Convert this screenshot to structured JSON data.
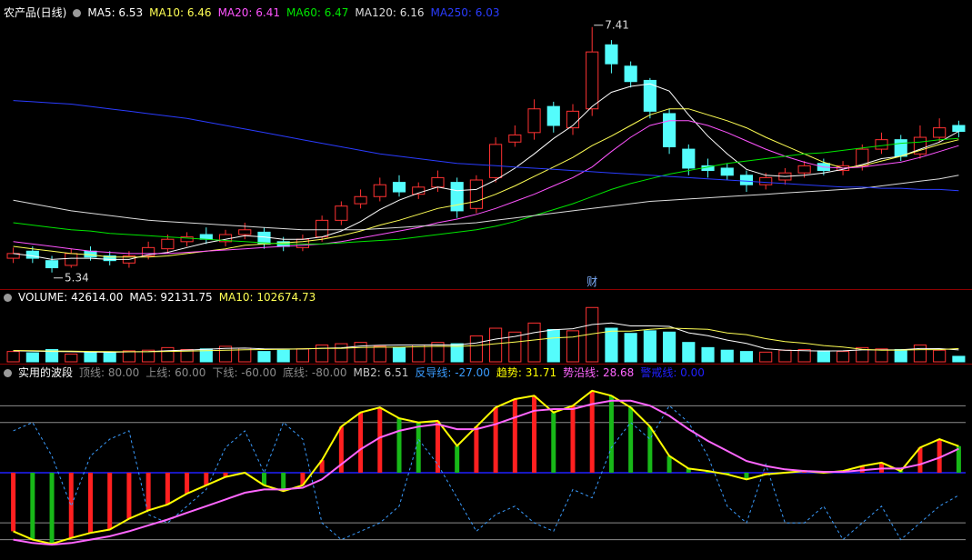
{
  "chart_data": [
    {
      "type": "candlestick",
      "title": "农产品(日线)",
      "ylim": [
        5.2,
        7.5
      ],
      "up_color": "#ff3232",
      "down_color": "#54fcfc",
      "open": [
        5.46,
        5.52,
        5.44,
        5.4,
        5.52,
        5.48,
        5.42,
        5.48,
        5.54,
        5.6,
        5.66,
        5.6,
        5.66,
        5.68,
        5.6,
        5.55,
        5.64,
        5.78,
        5.92,
        5.98,
        6.1,
        6.0,
        6.06,
        6.1,
        5.88,
        6.14,
        6.44,
        6.52,
        6.74,
        6.56,
        6.72,
        7.26,
        7.08,
        6.96,
        6.68,
        6.38,
        6.24,
        6.22,
        6.16,
        6.08,
        6.12,
        6.18,
        6.26,
        6.2,
        6.24,
        6.38,
        6.46,
        6.34,
        6.48,
        6.58
      ],
      "high": [
        5.55,
        5.56,
        5.48,
        5.54,
        5.56,
        5.52,
        5.52,
        5.6,
        5.66,
        5.68,
        5.72,
        5.7,
        5.76,
        5.72,
        5.64,
        5.66,
        5.82,
        5.94,
        6.04,
        6.14,
        6.16,
        6.1,
        6.2,
        6.14,
        6.16,
        6.48,
        6.58,
        6.8,
        6.78,
        6.76,
        7.41,
        7.3,
        7.12,
        6.98,
        6.72,
        6.42,
        6.3,
        6.26,
        6.2,
        6.18,
        6.22,
        6.28,
        6.3,
        6.28,
        6.42,
        6.52,
        6.5,
        6.58,
        6.64,
        6.62
      ],
      "low": [
        5.42,
        5.42,
        5.34,
        5.38,
        5.44,
        5.4,
        5.38,
        5.45,
        5.5,
        5.56,
        5.58,
        5.56,
        5.62,
        5.54,
        5.52,
        5.52,
        5.6,
        5.74,
        5.88,
        5.94,
        5.98,
        5.96,
        6.02,
        5.8,
        5.84,
        6.1,
        6.4,
        6.46,
        6.52,
        6.5,
        6.66,
        7.02,
        6.9,
        6.64,
        6.34,
        6.16,
        6.14,
        6.12,
        6.02,
        6.04,
        6.08,
        6.14,
        6.16,
        6.16,
        6.2,
        6.34,
        6.28,
        6.3,
        6.44,
        6.48
      ],
      "close": [
        5.5,
        5.46,
        5.38,
        5.5,
        5.47,
        5.44,
        5.48,
        5.55,
        5.62,
        5.64,
        5.62,
        5.66,
        5.7,
        5.58,
        5.56,
        5.62,
        5.78,
        5.9,
        5.98,
        6.08,
        6.02,
        6.06,
        6.14,
        5.86,
        6.12,
        6.42,
        6.5,
        6.72,
        6.58,
        6.7,
        7.2,
        7.1,
        6.95,
        6.7,
        6.4,
        6.22,
        6.2,
        6.16,
        6.08,
        6.14,
        6.18,
        6.24,
        6.2,
        6.24,
        6.38,
        6.46,
        6.32,
        6.48,
        6.56,
        6.53
      ],
      "series": [
        {
          "name": "MA5: 6.53",
          "color": "#ffffff",
          "values": [
            5.5,
            5.48,
            5.45,
            5.46,
            5.46,
            5.45,
            5.45,
            5.49,
            5.51,
            5.55,
            5.59,
            5.62,
            5.65,
            5.64,
            5.62,
            5.62,
            5.64,
            5.69,
            5.77,
            5.87,
            5.95,
            6.01,
            6.06,
            6.03,
            6.04,
            6.12,
            6.22,
            6.34,
            6.47,
            6.58,
            6.74,
            6.86,
            6.91,
            6.93,
            6.87,
            6.67,
            6.49,
            6.34,
            6.21,
            6.16,
            6.15,
            6.16,
            6.18,
            6.21,
            6.25,
            6.3,
            6.32,
            6.38,
            6.44,
            6.53
          ]
        },
        {
          "name": "MA10: 6.46",
          "color": "#ffff54",
          "values": [
            5.56,
            5.54,
            5.52,
            5.5,
            5.49,
            5.47,
            5.47,
            5.47,
            5.48,
            5.5,
            5.52,
            5.54,
            5.57,
            5.58,
            5.59,
            5.6,
            5.62,
            5.65,
            5.69,
            5.74,
            5.78,
            5.83,
            5.88,
            5.91,
            5.94,
            6.0,
            6.07,
            6.15,
            6.23,
            6.31,
            6.41,
            6.49,
            6.58,
            6.67,
            6.72,
            6.72,
            6.67,
            6.62,
            6.56,
            6.48,
            6.41,
            6.34,
            6.27,
            6.22,
            6.24,
            6.28,
            6.32,
            6.37,
            6.42,
            6.46
          ]
        },
        {
          "name": "MA20: 6.41",
          "color": "#ff54ff",
          "values": [
            5.6,
            5.58,
            5.56,
            5.54,
            5.52,
            5.51,
            5.5,
            5.5,
            5.5,
            5.51,
            5.52,
            5.53,
            5.54,
            5.55,
            5.56,
            5.57,
            5.58,
            5.6,
            5.63,
            5.66,
            5.69,
            5.72,
            5.76,
            5.79,
            5.83,
            5.88,
            5.94,
            6.0,
            6.07,
            6.14,
            6.23,
            6.36,
            6.48,
            6.58,
            6.62,
            6.62,
            6.58,
            6.52,
            6.45,
            6.38,
            6.32,
            6.27,
            6.23,
            6.22,
            6.23,
            6.25,
            6.27,
            6.31,
            6.36,
            6.41
          ]
        },
        {
          "name": "MA60: 6.47",
          "color": "#00e600",
          "values": [
            5.76,
            5.74,
            5.72,
            5.7,
            5.69,
            5.67,
            5.66,
            5.65,
            5.64,
            5.63,
            5.62,
            5.61,
            5.6,
            5.59,
            5.58,
            5.58,
            5.58,
            5.59,
            5.6,
            5.61,
            5.62,
            5.64,
            5.66,
            5.68,
            5.7,
            5.73,
            5.77,
            5.82,
            5.87,
            5.92,
            5.98,
            6.04,
            6.09,
            6.13,
            6.17,
            6.2,
            6.23,
            6.26,
            6.28,
            6.3,
            6.32,
            6.34,
            6.35,
            6.37,
            6.39,
            6.41,
            6.43,
            6.44,
            6.46,
            6.47
          ]
        },
        {
          "name": "MA120: 6.16",
          "color": "#dcdcdc",
          "values": [
            5.95,
            5.92,
            5.89,
            5.86,
            5.84,
            5.82,
            5.8,
            5.78,
            5.77,
            5.76,
            5.75,
            5.74,
            5.73,
            5.72,
            5.71,
            5.7,
            5.7,
            5.7,
            5.7,
            5.71,
            5.72,
            5.73,
            5.74,
            5.75,
            5.76,
            5.78,
            5.8,
            5.82,
            5.84,
            5.86,
            5.88,
            5.9,
            5.92,
            5.94,
            5.95,
            5.96,
            5.97,
            5.98,
            5.99,
            6.0,
            6.01,
            6.02,
            6.03,
            6.04,
            6.05,
            6.07,
            6.09,
            6.11,
            6.13,
            6.16
          ]
        },
        {
          "name": "MA250: 6.03",
          "color": "#2a3cff",
          "values": [
            6.79,
            6.78,
            6.77,
            6.76,
            6.74,
            6.72,
            6.7,
            6.68,
            6.66,
            6.64,
            6.61,
            6.58,
            6.55,
            6.52,
            6.49,
            6.46,
            6.43,
            6.4,
            6.37,
            6.34,
            6.32,
            6.3,
            6.28,
            6.26,
            6.25,
            6.24,
            6.23,
            6.22,
            6.21,
            6.2,
            6.19,
            6.18,
            6.17,
            6.16,
            6.15,
            6.14,
            6.13,
            6.12,
            6.11,
            6.1,
            6.09,
            6.08,
            6.07,
            6.06,
            6.06,
            6.05,
            6.05,
            6.04,
            6.04,
            6.03
          ]
        }
      ],
      "annotations": [
        {
          "label": "7.41",
          "index": 30,
          "value": 7.41
        },
        {
          "label": "5.34",
          "index": 2,
          "value": 5.34
        },
        {
          "label": "财",
          "index": 30
        }
      ]
    },
    {
      "type": "volume",
      "ylim": [
        0,
        450000
      ],
      "bars": {
        "name": "VOLUME: 42614.00",
        "values": [
          80000,
          70000,
          95000,
          60000,
          75000,
          70000,
          85000,
          90000,
          110000,
          95000,
          100000,
          120000,
          105000,
          80000,
          90000,
          100000,
          130000,
          140000,
          150000,
          120000,
          110000,
          130000,
          150000,
          140000,
          200000,
          260000,
          230000,
          300000,
          250000,
          240000,
          420000,
          260000,
          220000,
          240000,
          230000,
          150000,
          110000,
          90000,
          80000,
          75000,
          90000,
          95000,
          85000,
          80000,
          110000,
          100000,
          95000,
          130000,
          90000,
          42614
        ]
      },
      "series": [
        {
          "name": "MA5: 92131.75",
          "color": "#ffffff",
          "values": [
            85000,
            82000,
            80000,
            78000,
            76000,
            74000,
            77000,
            79000,
            86000,
            91000,
            96000,
            104000,
            106000,
            100000,
            99000,
            99000,
            105000,
            108000,
            122000,
            128000,
            130000,
            130000,
            132000,
            130000,
            146000,
            176000,
            196000,
            226000,
            248000,
            256000,
            288000,
            300000,
            278000,
            278000,
            274000,
            224000,
            202000,
            168000,
            142000,
            101000,
            89000,
            86000,
            84000,
            85000,
            92000,
            92000,
            93000,
            103000,
            102000,
            92131.75
          ]
        },
        {
          "name": "MA10: 102674.73",
          "color": "#ffff54",
          "values": [
            88000,
            86000,
            84000,
            82000,
            80000,
            79000,
            78000,
            78000,
            80000,
            83000,
            86000,
            90000,
            93000,
            95000,
            97000,
            100000,
            104000,
            104000,
            111000,
            113000,
            113000,
            117000,
            120000,
            119000,
            126000,
            140000,
            153000,
            169000,
            185000,
            192000,
            216000,
            238000,
            237000,
            252000,
            261000,
            256000,
            251000,
            223000,
            210000,
            179000,
            156000,
            144000,
            126000,
            114000,
            96000,
            90000,
            91000,
            94000,
            94000,
            102674.73
          ]
        }
      ]
    },
    {
      "type": "oscillator",
      "title": "实用的波段",
      "ylim": [
        -100,
        120
      ],
      "up_color": "#ff2020",
      "down_color": "#18b818",
      "items": [
        {
          "name": "顶线: 80.00",
          "color": "#8c8c8c",
          "style": "level",
          "level": 80
        },
        {
          "name": "上线: 60.00",
          "color": "#8c8c8c",
          "style": "level",
          "level": 60
        },
        {
          "name": "下线: -60.00",
          "color": "#8c8c8c",
          "style": "level",
          "level": -60
        },
        {
          "name": "底线: -80.00",
          "color": "#8c8c8c",
          "style": "level",
          "level": -80
        },
        {
          "name": "MB2: 6.51",
          "color": "#c8c8c8"
        },
        {
          "name": "反导线: -27.00",
          "color": "#3a9cff",
          "style": "dashed",
          "values": [
            50,
            60,
            20,
            -40,
            20,
            40,
            50,
            -50,
            -60,
            -40,
            -20,
            30,
            50,
            0,
            60,
            40,
            -60,
            -80,
            -70,
            -60,
            -40,
            40,
            10,
            -30,
            -70,
            -50,
            -40,
            -60,
            -70,
            -20,
            -30,
            30,
            60,
            40,
            80,
            60,
            20,
            -40,
            -60,
            10,
            -60,
            -60,
            -40,
            -80,
            -60,
            -40,
            -80,
            -60,
            -40,
            -27
          ]
        },
        {
          "name": "趋势: 31.71",
          "color": "#ffff00",
          "style": "histogram",
          "values": [
            -70,
            -80,
            -85,
            -78,
            -72,
            -68,
            -55,
            -45,
            -38,
            -25,
            -15,
            -5,
            0,
            -15,
            -22,
            -15,
            15,
            55,
            72,
            78,
            65,
            60,
            62,
            32,
            55,
            78,
            88,
            92,
            72,
            80,
            98,
            92,
            78,
            55,
            20,
            5,
            2,
            -2,
            -8,
            -2,
            0,
            2,
            0,
            2,
            8,
            12,
            2,
            30,
            40,
            31.71
          ]
        },
        {
          "name": "势沿线: 28.68",
          "color": "#ff66ff",
          "style": "line",
          "values": [
            -80,
            -84,
            -86,
            -84,
            -80,
            -76,
            -70,
            -63,
            -56,
            -48,
            -40,
            -32,
            -24,
            -20,
            -20,
            -18,
            -8,
            10,
            28,
            42,
            50,
            55,
            58,
            52,
            52,
            58,
            66,
            74,
            76,
            76,
            82,
            86,
            86,
            80,
            68,
            52,
            38,
            26,
            14,
            8,
            4,
            2,
            1,
            1,
            3,
            5,
            5,
            10,
            18,
            28.68
          ]
        },
        {
          "name": "警戒线: 0.00",
          "color": "#2020ff",
          "style": "level",
          "level": 0
        }
      ]
    }
  ]
}
